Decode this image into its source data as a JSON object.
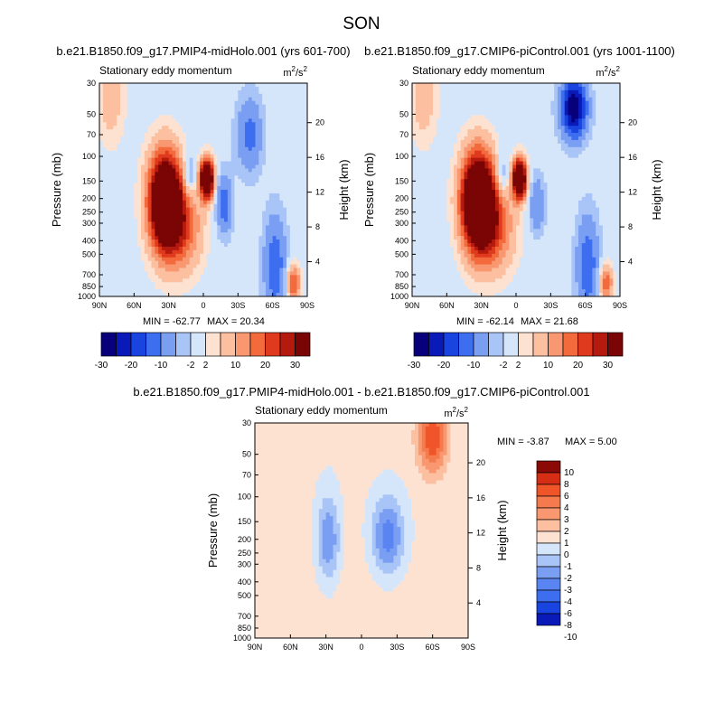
{
  "figure": {
    "season": "SON"
  },
  "colors": {
    "palette13": [
      "#08007a",
      "#0a1ab8",
      "#1a44e0",
      "#3d6ef0",
      "#7a9ef2",
      "#a9c4f6",
      "#d6e6fa",
      "#fde2d2",
      "#fcc0a0",
      "#f99870",
      "#f36a3d",
      "#e03a1e",
      "#b51a0e",
      "#7a0505"
    ],
    "diff13": [
      "#0a1ab8",
      "#1a44e0",
      "#3d6ef0",
      "#5a84f2",
      "#7a9ef2",
      "#a9c4f6",
      "#d6e6fa",
      "#fde2d2",
      "#fcc0a0",
      "#f99870",
      "#f57a4d",
      "#f0552a",
      "#d52e15",
      "#8b0a05"
    ]
  },
  "chart_data": [
    {
      "type": "heatmap",
      "id": "p1",
      "title": "b.e21.B1850.f09_g17.PMIP4-midHolo.001 (yrs 601-700)",
      "subtitle": "Stationary eddy momentum",
      "units_base": "m",
      "units_exp": "2",
      "units_sep": "/s",
      "xlabel": "",
      "ylabel": "Pressure (mb)",
      "y2label": "Height (km)",
      "x_ticks": [
        "90N",
        "60N",
        "30N",
        "0",
        "30S",
        "60S",
        "90S"
      ],
      "y_ticks": [
        30,
        50,
        70,
        100,
        150,
        200,
        250,
        300,
        400,
        500,
        700,
        850,
        1000
      ],
      "y2_ticks": [
        4,
        8,
        12,
        16,
        20
      ],
      "min_label": "MIN = -62.77",
      "max_label": "MAX =  20.34",
      "label_bar": [
        -30,
        -20,
        -10,
        -2,
        2,
        10,
        20,
        30
      ],
      "features": [
        {
          "lat": 33,
          "p": 210,
          "amp": 58,
          "wl": 10,
          "wp": 0.55
        },
        {
          "lat": 18,
          "p": 320,
          "amp": 18,
          "wl": 12,
          "wp": 0.5
        },
        {
          "lat": -3,
          "p": 145,
          "amp": 60,
          "wl": 4,
          "wp": 0.22
        },
        {
          "lat": 12,
          "p": 140,
          "amp": -12,
          "wl": 4,
          "wp": 0.25
        },
        {
          "lat": -18,
          "p": 220,
          "amp": -14,
          "wl": 5,
          "wp": 0.35
        },
        {
          "lat": -40,
          "p": 70,
          "amp": -12,
          "wl": 8,
          "wp": 0.45
        },
        {
          "lat": -62,
          "p": 600,
          "amp": -14,
          "wl": 7,
          "wp": 0.6
        },
        {
          "lat": 80,
          "p": 40,
          "amp": 8,
          "wl": 8,
          "wp": 0.5
        },
        {
          "lat": -78,
          "p": 800,
          "amp": 22,
          "wl": 4,
          "wp": 0.2
        }
      ]
    },
    {
      "type": "heatmap",
      "id": "p2",
      "title": "b.e21.B1850.f09_g17.CMIP6-piControl.001 (yrs 1001-1100)",
      "subtitle": "Stationary eddy momentum",
      "units_base": "m",
      "units_exp": "2",
      "units_sep": "/s",
      "xlabel": "",
      "ylabel": "Pressure (mb)",
      "y2label": "Height (km)",
      "x_ticks": [
        "90N",
        "60N",
        "30N",
        "0",
        "30S",
        "60S",
        "90S"
      ],
      "y_ticks": [
        30,
        50,
        70,
        100,
        150,
        200,
        250,
        300,
        400,
        500,
        700,
        850,
        1000
      ],
      "y2_ticks": [
        4,
        8,
        12,
        16,
        20
      ],
      "min_label": "MIN = -62.14",
      "max_label": "MAX =  21.68",
      "label_bar": [
        -30,
        -20,
        -10,
        -2,
        2,
        10,
        20,
        30
      ],
      "features": [
        {
          "lat": 33,
          "p": 210,
          "amp": 62,
          "wl": 10,
          "wp": 0.55
        },
        {
          "lat": 18,
          "p": 320,
          "amp": 18,
          "wl": 12,
          "wp": 0.5
        },
        {
          "lat": -3,
          "p": 145,
          "amp": 60,
          "wl": 4,
          "wp": 0.22
        },
        {
          "lat": 12,
          "p": 140,
          "amp": -10,
          "wl": 4,
          "wp": 0.25
        },
        {
          "lat": -18,
          "p": 220,
          "amp": -10,
          "wl": 5,
          "wp": 0.35
        },
        {
          "lat": -50,
          "p": 45,
          "amp": -30,
          "wl": 8,
          "wp": 0.35
        },
        {
          "lat": -62,
          "p": 600,
          "amp": -14,
          "wl": 7,
          "wp": 0.6
        },
        {
          "lat": 80,
          "p": 40,
          "amp": 8,
          "wl": 8,
          "wp": 0.5
        },
        {
          "lat": -78,
          "p": 800,
          "amp": 20,
          "wl": 4,
          "wp": 0.2
        }
      ]
    },
    {
      "type": "heatmap",
      "id": "p3",
      "title": "b.e21.B1850.f09_g17.PMIP4-midHolo.001 - b.e21.B1850.f09_g17.CMIP6-piControl.001",
      "subtitle": "Stationary eddy momentum",
      "units_base": "m",
      "units_exp": "2",
      "units_sep": "/s",
      "xlabel": "",
      "ylabel": "Pressure (mb)",
      "y2label": "Height (km)",
      "x_ticks": [
        "90N",
        "60N",
        "30N",
        "0",
        "30S",
        "60S",
        "90S"
      ],
      "y_ticks": [
        30,
        50,
        70,
        100,
        150,
        200,
        250,
        300,
        400,
        500,
        700,
        850,
        1000
      ],
      "y2_ticks": [
        4,
        8,
        12,
        16,
        20
      ],
      "min_label": "MIN =  -3.87",
      "max_label": "MAX =   5.00",
      "label_bar": [
        10,
        8,
        6,
        4,
        3,
        2,
        1,
        0,
        -1,
        -2,
        -3,
        -4,
        -6,
        -8,
        -10
      ],
      "features": [
        {
          "lat": 28,
          "p": 200,
          "amp": -3.4,
          "wl": 7,
          "wp": 0.5
        },
        {
          "lat": -22,
          "p": 190,
          "amp": -4.0,
          "wl": 10,
          "wp": 0.45
        },
        {
          "lat": -60,
          "p": 38,
          "amp": 5.0,
          "wl": 9,
          "wp": 0.4
        },
        {
          "lat": 0,
          "p": 500,
          "amp": 0.6,
          "wl": 60,
          "wp": 1.5
        }
      ]
    }
  ]
}
